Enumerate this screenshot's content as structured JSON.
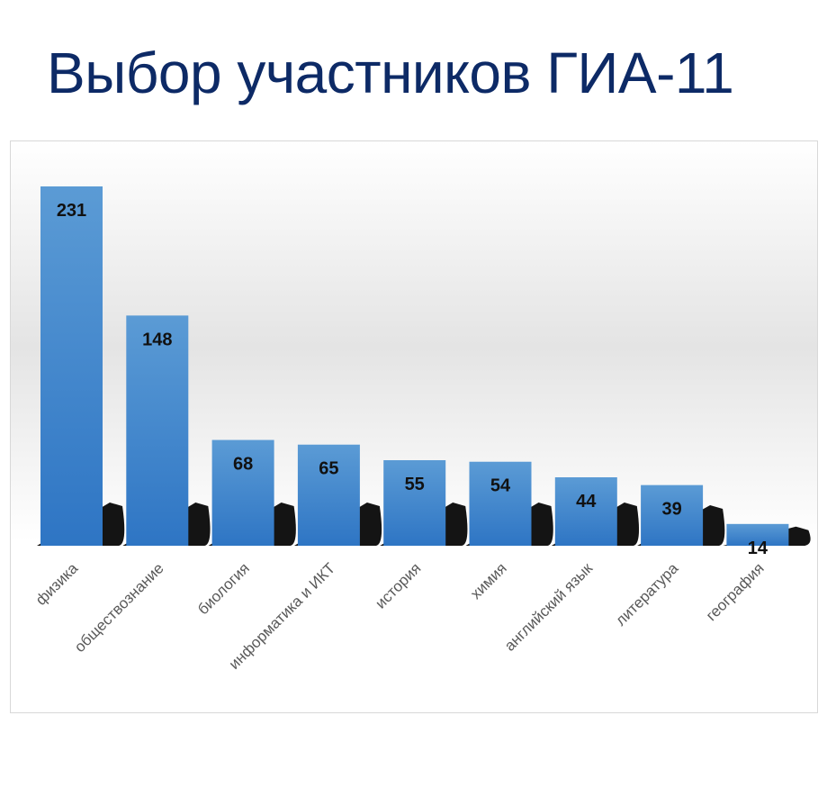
{
  "chart_data": {
    "type": "bar",
    "title": "Выбор участников ГИА-11",
    "categories": [
      "физика",
      "обществознание",
      "биология",
      "информатика и ИКТ",
      "история",
      "химия",
      "английский язык",
      "литература",
      "география"
    ],
    "values": [
      231,
      148,
      68,
      65,
      55,
      54,
      44,
      39,
      14
    ],
    "ylim": [
      0,
      231
    ],
    "grid": false,
    "data_labels": true,
    "colors": {
      "bar_top": "#5b9bd5",
      "bar_bottom": "#2e75c4",
      "shadow": "#000000",
      "title": "#0d2a66",
      "label": "#595959"
    }
  }
}
